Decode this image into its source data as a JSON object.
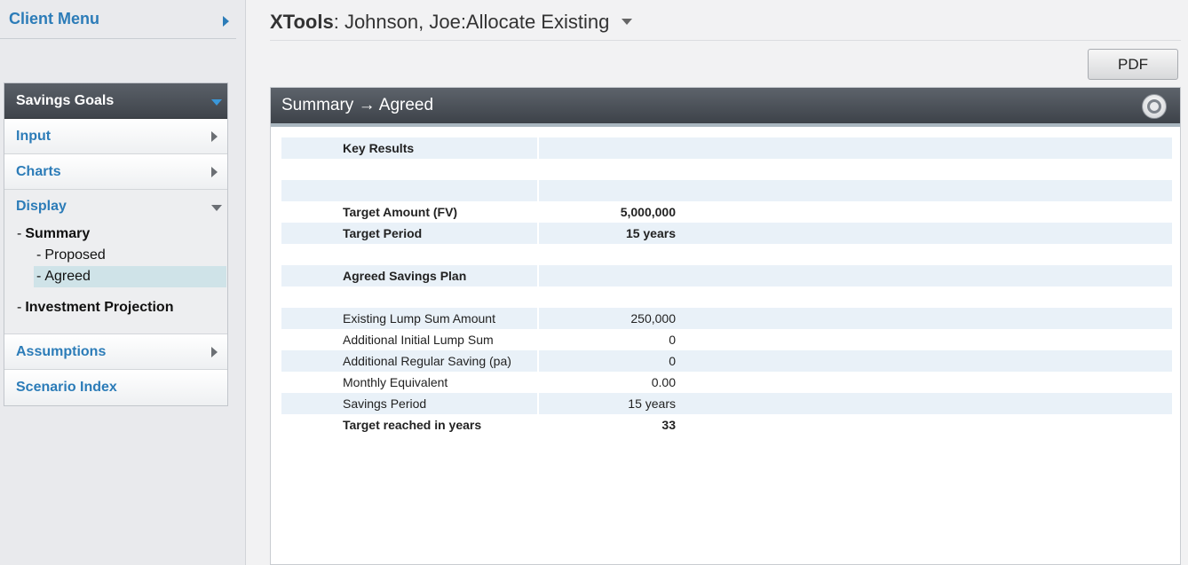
{
  "sidebar": {
    "client_menu": "Client Menu",
    "section_title": "Savings Goals",
    "items": [
      {
        "label": "Input"
      },
      {
        "label": "Charts"
      },
      {
        "label": "Display"
      },
      {
        "label": "Assumptions"
      },
      {
        "label": "Scenario Index"
      }
    ],
    "display_sub": {
      "summary": "Summary",
      "proposed": "Proposed",
      "agreed": "Agreed",
      "investment_projection": "Investment Projection",
      "dash": "-"
    }
  },
  "header": {
    "app": "XTools",
    "title_rest": ": Johnson, Joe:Allocate Existing"
  },
  "toolbar": {
    "pdf_label": "PDF"
  },
  "panel": {
    "title": "Summary → Agreed",
    "rows": [
      {
        "label": "Key Results",
        "value": ""
      },
      {
        "label": "",
        "value": ""
      },
      {
        "label": "",
        "value": ""
      },
      {
        "label": "Target Amount (FV)",
        "value": "5,000,000"
      },
      {
        "label": "Target Period",
        "value": "15 years"
      },
      {
        "label": "",
        "value": ""
      },
      {
        "label": "Agreed Savings Plan",
        "value": ""
      },
      {
        "label": "",
        "value": ""
      },
      {
        "label": "Existing Lump Sum Amount",
        "value": "250,000"
      },
      {
        "label": "Additional Initial Lump Sum",
        "value": "0"
      },
      {
        "label": "Additional Regular Saving (pa)",
        "value": "0"
      },
      {
        "label": "Monthly Equivalent",
        "value": "0.00"
      },
      {
        "label": "Savings Period",
        "value": "15 years"
      },
      {
        "label": "Target reached in years",
        "value": "33"
      }
    ]
  }
}
